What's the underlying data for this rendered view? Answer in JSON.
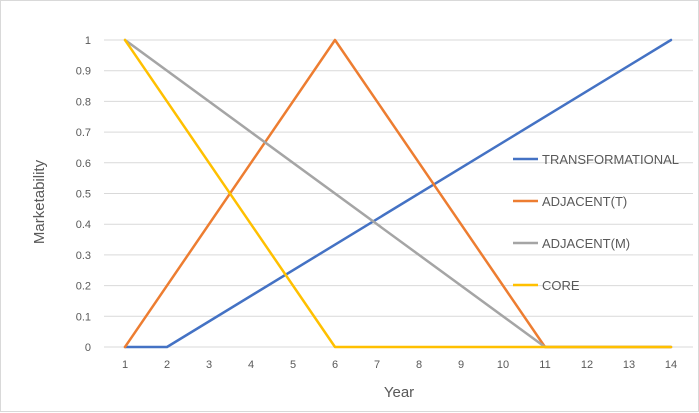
{
  "chart_data": {
    "type": "line",
    "title": "",
    "xlabel": "Year",
    "ylabel": "Marketability",
    "x": [
      1,
      2,
      3,
      4,
      5,
      6,
      7,
      8,
      9,
      10,
      11,
      12,
      13,
      14
    ],
    "xlim": [
      1,
      14
    ],
    "ylim": [
      0,
      1
    ],
    "y_ticks": [
      "0",
      "0.1",
      "0.2",
      "0.3",
      "0.4",
      "0.5",
      "0.6",
      "0.7",
      "0.8",
      "0.9",
      "1"
    ],
    "x_ticks": [
      "1",
      "2",
      "3",
      "4",
      "5",
      "6",
      "7",
      "8",
      "9",
      "10",
      "11",
      "12",
      "13",
      "14"
    ],
    "grid": "horizontal",
    "legend_position": "right",
    "series": [
      {
        "name": "TRANSFORMATIONAL",
        "color": "#4472c4",
        "points": [
          [
            1,
            0
          ],
          [
            2,
            0
          ],
          [
            14,
            1
          ]
        ]
      },
      {
        "name": "ADJACENT(T)",
        "color": "#ed7d31",
        "points": [
          [
            1,
            0
          ],
          [
            6,
            1
          ],
          [
            11,
            0
          ],
          [
            14,
            0
          ]
        ]
      },
      {
        "name": "ADJACENT(M)",
        "color": "#a5a5a5",
        "points": [
          [
            1,
            1
          ],
          [
            11,
            0
          ],
          [
            14,
            0
          ]
        ]
      },
      {
        "name": "CORE",
        "color": "#ffc000",
        "points": [
          [
            1,
            1
          ],
          [
            6,
            0
          ],
          [
            14,
            0
          ]
        ]
      }
    ]
  }
}
